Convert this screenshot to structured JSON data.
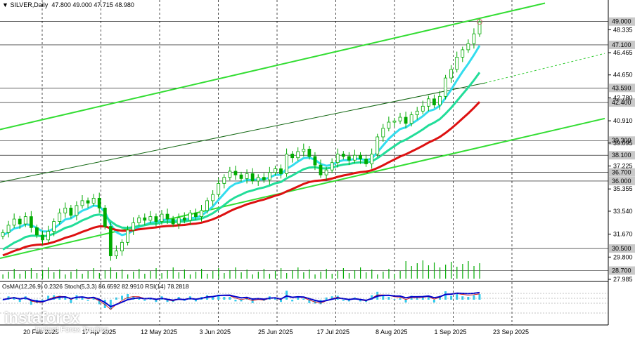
{
  "header": {
    "symbol": "SILVER,Daily",
    "ohlc": "47.800 49.000 47.715 48.980"
  },
  "indicator_header": "OsMA(12,26,9) 0.2326  Stoch(5,3,3) 86.6592 82.9910  RSI(14) 78.2818",
  "watermark": {
    "brand": "instaforex",
    "tagline": "Instant Forex Trading"
  },
  "colors": {
    "background": "#ffffff",
    "candle": "#00aa00",
    "trendline": "#33dd33",
    "ema_fast": "#33ddee",
    "ema_mid": "#22dd99",
    "ema_slow": "#dd1111",
    "price_highlight_bg": "#c8c8c8",
    "osma_bars": "#33ccee",
    "macd_line": "#0000cc"
  },
  "chart_data": {
    "type": "candlestick",
    "title": "SILVER,Daily",
    "ylim": [
      27.985,
      50.3
    ],
    "x_labels": [
      "20 Feb 2025",
      "17 Apr 2025",
      "12 May 2025",
      "3 Jun 2025",
      "25 Jun 2025",
      "17 Jul 2025",
      "8 Aug 2025",
      "1 Sep 2025",
      "23 Sep 2025"
    ],
    "price_ticks": [
      "48.335",
      "46.465",
      "44.650",
      "42.780",
      "40.910",
      "39.095",
      "37.225",
      "35.355",
      "33.540",
      "31.670",
      "29.800",
      "27.985"
    ],
    "level_lines": [
      "49.000",
      "47.100",
      "43.590",
      "42.400",
      "39.300",
      "38.100",
      "36.700",
      "36.000",
      "30.500",
      "28.700"
    ],
    "highlighted_levels": [
      "49.000",
      "47.100",
      "43.590",
      "42.400",
      "39.300",
      "38.100",
      "36.700",
      "36.000",
      "30.500",
      "28.700"
    ],
    "close_series": [
      31.8,
      32.4,
      32.9,
      32.5,
      33.1,
      32.2,
      31.6,
      31.2,
      31.9,
      32.7,
      33.4,
      33.8,
      33.2,
      34.0,
      34.4,
      34.2,
      34.6,
      33.8,
      32.3,
      29.9,
      30.3,
      31.0,
      32.0,
      32.6,
      33.0,
      32.8,
      33.1,
      32.7,
      33.3,
      32.9,
      32.5,
      33.0,
      32.8,
      33.4,
      33.1,
      33.6,
      34.4,
      34.9,
      35.8,
      36.3,
      36.8,
      36.5,
      36.2,
      36.6,
      36.0,
      36.3,
      36.1,
      36.7,
      37.0,
      36.6,
      38.2,
      37.9,
      38.4,
      38.6,
      38.0,
      37.3,
      36.5,
      36.9,
      37.5,
      38.2,
      38.0,
      37.7,
      38.1,
      37.8,
      37.4,
      38.2,
      39.6,
      40.3,
      40.8,
      40.9,
      41.2,
      40.7,
      41.4,
      41.7,
      42.1,
      42.7,
      42.2,
      42.9,
      44.4,
      45.1,
      46.1,
      46.7,
      47.2,
      48.0,
      48.98
    ],
    "overlays": [
      "EMA fast (cyan)",
      "EMA medium (teal)",
      "EMA slow (red)",
      "ascending channel (green)"
    ],
    "grid": "dashed vertical",
    "legend": "none"
  }
}
